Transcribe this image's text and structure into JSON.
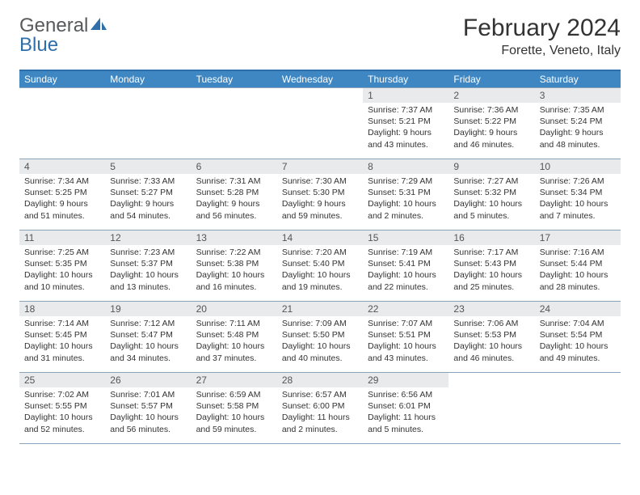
{
  "brand": {
    "part1": "General",
    "part2": "Blue"
  },
  "title": "February 2024",
  "location": "Forette, Veneto, Italy",
  "colors": {
    "header_bg": "#3e87c3",
    "header_text": "#ffffff",
    "border": "#8aa4bc",
    "accent_border": "#2e6fab",
    "daynum_bg": "#e9eaeb",
    "text": "#333333",
    "logo_gray": "#58595b",
    "logo_blue": "#2e6fab"
  },
  "weekdays": [
    "Sunday",
    "Monday",
    "Tuesday",
    "Wednesday",
    "Thursday",
    "Friday",
    "Saturday"
  ],
  "weeks": [
    [
      null,
      null,
      null,
      null,
      {
        "n": "1",
        "sr": "Sunrise: 7:37 AM",
        "ss": "Sunset: 5:21 PM",
        "dl1": "Daylight: 9 hours",
        "dl2": "and 43 minutes."
      },
      {
        "n": "2",
        "sr": "Sunrise: 7:36 AM",
        "ss": "Sunset: 5:22 PM",
        "dl1": "Daylight: 9 hours",
        "dl2": "and 46 minutes."
      },
      {
        "n": "3",
        "sr": "Sunrise: 7:35 AM",
        "ss": "Sunset: 5:24 PM",
        "dl1": "Daylight: 9 hours",
        "dl2": "and 48 minutes."
      }
    ],
    [
      {
        "n": "4",
        "sr": "Sunrise: 7:34 AM",
        "ss": "Sunset: 5:25 PM",
        "dl1": "Daylight: 9 hours",
        "dl2": "and 51 minutes."
      },
      {
        "n": "5",
        "sr": "Sunrise: 7:33 AM",
        "ss": "Sunset: 5:27 PM",
        "dl1": "Daylight: 9 hours",
        "dl2": "and 54 minutes."
      },
      {
        "n": "6",
        "sr": "Sunrise: 7:31 AM",
        "ss": "Sunset: 5:28 PM",
        "dl1": "Daylight: 9 hours",
        "dl2": "and 56 minutes."
      },
      {
        "n": "7",
        "sr": "Sunrise: 7:30 AM",
        "ss": "Sunset: 5:30 PM",
        "dl1": "Daylight: 9 hours",
        "dl2": "and 59 minutes."
      },
      {
        "n": "8",
        "sr": "Sunrise: 7:29 AM",
        "ss": "Sunset: 5:31 PM",
        "dl1": "Daylight: 10 hours",
        "dl2": "and 2 minutes."
      },
      {
        "n": "9",
        "sr": "Sunrise: 7:27 AM",
        "ss": "Sunset: 5:32 PM",
        "dl1": "Daylight: 10 hours",
        "dl2": "and 5 minutes."
      },
      {
        "n": "10",
        "sr": "Sunrise: 7:26 AM",
        "ss": "Sunset: 5:34 PM",
        "dl1": "Daylight: 10 hours",
        "dl2": "and 7 minutes."
      }
    ],
    [
      {
        "n": "11",
        "sr": "Sunrise: 7:25 AM",
        "ss": "Sunset: 5:35 PM",
        "dl1": "Daylight: 10 hours",
        "dl2": "and 10 minutes."
      },
      {
        "n": "12",
        "sr": "Sunrise: 7:23 AM",
        "ss": "Sunset: 5:37 PM",
        "dl1": "Daylight: 10 hours",
        "dl2": "and 13 minutes."
      },
      {
        "n": "13",
        "sr": "Sunrise: 7:22 AM",
        "ss": "Sunset: 5:38 PM",
        "dl1": "Daylight: 10 hours",
        "dl2": "and 16 minutes."
      },
      {
        "n": "14",
        "sr": "Sunrise: 7:20 AM",
        "ss": "Sunset: 5:40 PM",
        "dl1": "Daylight: 10 hours",
        "dl2": "and 19 minutes."
      },
      {
        "n": "15",
        "sr": "Sunrise: 7:19 AM",
        "ss": "Sunset: 5:41 PM",
        "dl1": "Daylight: 10 hours",
        "dl2": "and 22 minutes."
      },
      {
        "n": "16",
        "sr": "Sunrise: 7:17 AM",
        "ss": "Sunset: 5:43 PM",
        "dl1": "Daylight: 10 hours",
        "dl2": "and 25 minutes."
      },
      {
        "n": "17",
        "sr": "Sunrise: 7:16 AM",
        "ss": "Sunset: 5:44 PM",
        "dl1": "Daylight: 10 hours",
        "dl2": "and 28 minutes."
      }
    ],
    [
      {
        "n": "18",
        "sr": "Sunrise: 7:14 AM",
        "ss": "Sunset: 5:45 PM",
        "dl1": "Daylight: 10 hours",
        "dl2": "and 31 minutes."
      },
      {
        "n": "19",
        "sr": "Sunrise: 7:12 AM",
        "ss": "Sunset: 5:47 PM",
        "dl1": "Daylight: 10 hours",
        "dl2": "and 34 minutes."
      },
      {
        "n": "20",
        "sr": "Sunrise: 7:11 AM",
        "ss": "Sunset: 5:48 PM",
        "dl1": "Daylight: 10 hours",
        "dl2": "and 37 minutes."
      },
      {
        "n": "21",
        "sr": "Sunrise: 7:09 AM",
        "ss": "Sunset: 5:50 PM",
        "dl1": "Daylight: 10 hours",
        "dl2": "and 40 minutes."
      },
      {
        "n": "22",
        "sr": "Sunrise: 7:07 AM",
        "ss": "Sunset: 5:51 PM",
        "dl1": "Daylight: 10 hours",
        "dl2": "and 43 minutes."
      },
      {
        "n": "23",
        "sr": "Sunrise: 7:06 AM",
        "ss": "Sunset: 5:53 PM",
        "dl1": "Daylight: 10 hours",
        "dl2": "and 46 minutes."
      },
      {
        "n": "24",
        "sr": "Sunrise: 7:04 AM",
        "ss": "Sunset: 5:54 PM",
        "dl1": "Daylight: 10 hours",
        "dl2": "and 49 minutes."
      }
    ],
    [
      {
        "n": "25",
        "sr": "Sunrise: 7:02 AM",
        "ss": "Sunset: 5:55 PM",
        "dl1": "Daylight: 10 hours",
        "dl2": "and 52 minutes."
      },
      {
        "n": "26",
        "sr": "Sunrise: 7:01 AM",
        "ss": "Sunset: 5:57 PM",
        "dl1": "Daylight: 10 hours",
        "dl2": "and 56 minutes."
      },
      {
        "n": "27",
        "sr": "Sunrise: 6:59 AM",
        "ss": "Sunset: 5:58 PM",
        "dl1": "Daylight: 10 hours",
        "dl2": "and 59 minutes."
      },
      {
        "n": "28",
        "sr": "Sunrise: 6:57 AM",
        "ss": "Sunset: 6:00 PM",
        "dl1": "Daylight: 11 hours",
        "dl2": "and 2 minutes."
      },
      {
        "n": "29",
        "sr": "Sunrise: 6:56 AM",
        "ss": "Sunset: 6:01 PM",
        "dl1": "Daylight: 11 hours",
        "dl2": "and 5 minutes."
      },
      null,
      null
    ]
  ]
}
